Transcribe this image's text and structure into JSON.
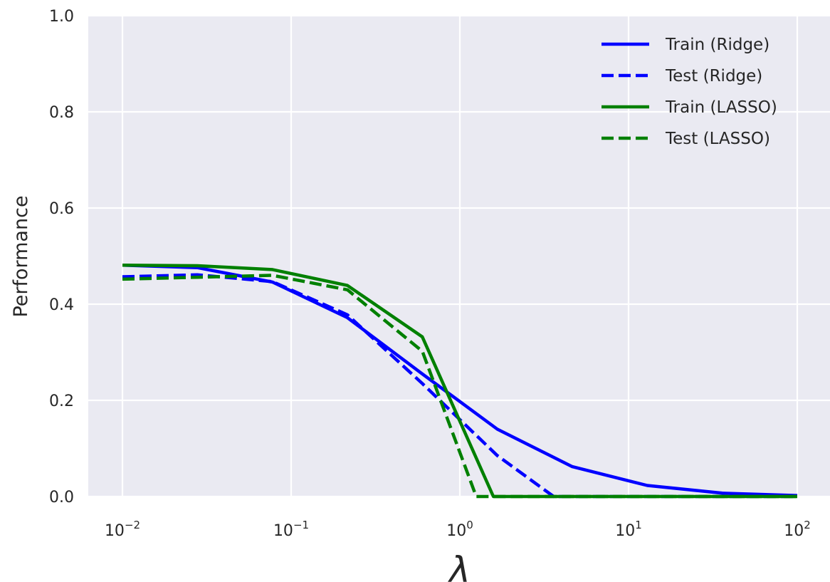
{
  "chart_data": {
    "type": "line",
    "xscale": "log",
    "xlim": [
      0.01,
      100
    ],
    "ylim": [
      0.0,
      1.0
    ],
    "xlabel": "λ",
    "ylabel": "Performance",
    "grid": true,
    "legend_position": "top-right",
    "xticks": [
      {
        "value": 0.01,
        "base": "10",
        "exp": "−2"
      },
      {
        "value": 0.1,
        "base": "10",
        "exp": "−1"
      },
      {
        "value": 1,
        "base": "10",
        "exp": "0"
      },
      {
        "value": 10,
        "base": "10",
        "exp": "1"
      },
      {
        "value": 100,
        "base": "10",
        "exp": "2"
      }
    ],
    "yticks": [
      "0.0",
      "0.2",
      "0.4",
      "0.6",
      "0.8",
      "1.0"
    ],
    "x": [
      0.01,
      0.0278,
      0.0774,
      0.2154,
      0.5995,
      1.6681,
      4.6416,
      12.9155,
      35.9381,
      100
    ],
    "series": [
      {
        "name": "Train (Ridge)",
        "color": "#0000ff",
        "dash": "solid",
        "values": [
          0.481,
          0.476,
          0.446,
          0.372,
          0.255,
          0.14,
          0.062,
          0.023,
          0.007,
          0.002
        ]
      },
      {
        "name": "Test (Ridge)",
        "color": "#0000ff",
        "dash": "dashed",
        "values": [
          0.457,
          0.461,
          0.447,
          0.378,
          0.235,
          0.085,
          0.0,
          0.0,
          0.0,
          0.0
        ]
      },
      {
        "name": "Train (LASSO)",
        "color": "#008000",
        "dash": "solid",
        "values": [
          0.481,
          0.48,
          0.472,
          0.439,
          0.332,
          0.0,
          0.0,
          0.0,
          0.0,
          0.0
        ]
      },
      {
        "name": "Test (LASSO)",
        "color": "#008000",
        "dash": "dashed",
        "values": [
          0.452,
          0.456,
          0.46,
          0.43,
          0.302,
          0.0,
          0.0,
          0.0,
          0.0,
          0.0
        ]
      }
    ],
    "zero_crossings": [
      {
        "series": "Test (Ridge)",
        "x": 3.6
      },
      {
        "series": "Train (LASSO)",
        "x": 1.58
      },
      {
        "series": "Test (LASSO)",
        "x": 1.25
      }
    ]
  }
}
